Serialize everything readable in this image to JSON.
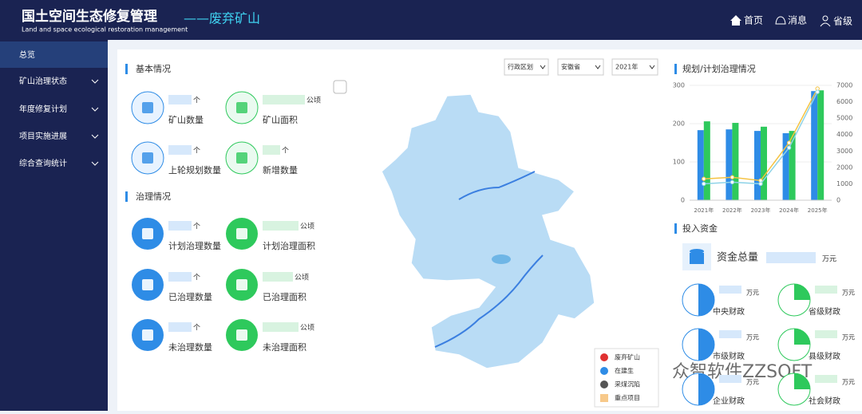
{
  "header": {
    "title": "国土空间生态修复管理",
    "subtitle": "Land and space ecological restoration management",
    "module": "——废弃矿山",
    "nav": [
      "首页",
      "消息",
      "省级"
    ]
  },
  "sidebar": {
    "items": [
      "总览",
      "矿山治理状态",
      "年度修复计划",
      "项目实施进展",
      "综合查询统计"
    ]
  },
  "basic": {
    "title": "基本情况",
    "items": [
      {
        "label": "矿山数量",
        "unit": "个"
      },
      {
        "label": "矿山面积",
        "unit": "公顷"
      },
      {
        "label": "上轮规划数量",
        "unit": "个"
      },
      {
        "label": "新增数量",
        "unit": "个"
      }
    ]
  },
  "governance": {
    "title": "治理情况",
    "items": [
      {
        "label": "计划治理数量",
        "unit": "个"
      },
      {
        "label": "计划治理面积",
        "unit": "公顷"
      },
      {
        "label": "已治理数量",
        "unit": "个"
      },
      {
        "label": "已治理面积",
        "unit": "公顷"
      },
      {
        "label": "未治理数量",
        "unit": "个"
      },
      {
        "label": "未治理面积",
        "unit": "公顷"
      }
    ]
  },
  "map": {
    "filters": [
      "行政区划",
      "安徽省",
      "2021年"
    ],
    "legend": [
      "废弃矿山",
      "在建生",
      "采煤沉陷",
      "重点项目"
    ]
  },
  "chart_data": {
    "type": "bar-line",
    "title": "规划/计划治理情况",
    "categories": [
      "2021年",
      "2022年",
      "2023年",
      "2024年",
      "2025年"
    ],
    "series": [
      {
        "type": "bar",
        "color": "#2e8ce6",
        "values": [
          183,
          185,
          181,
          175,
          285
        ]
      },
      {
        "type": "bar",
        "color": "#2ec95c",
        "values": [
          206,
          202,
          192,
          181,
          287
        ]
      },
      {
        "type": "line",
        "axis": "y2",
        "color": "#f5c342",
        "values": [
          1300,
          1400,
          1200,
          3500,
          6800
        ]
      },
      {
        "type": "line",
        "axis": "y2",
        "color": "#8fd3e8",
        "values": [
          1000,
          1100,
          1000,
          3200,
          6600
        ]
      }
    ],
    "ylim": [
      0,
      300
    ],
    "yticks": [
      0,
      100,
      200,
      300
    ],
    "y2lim": [
      0,
      7000
    ],
    "y2ticks": [
      0,
      1000,
      2000,
      3000,
      4000,
      5000,
      6000,
      7000
    ]
  },
  "funding": {
    "title": "投入资金",
    "total_label": "资金总量",
    "total_unit": "万元",
    "items": [
      {
        "label": "中央财政",
        "unit": "万元",
        "share": 50,
        "color": "#2e8ce6"
      },
      {
        "label": "省级财政",
        "unit": "万元",
        "share": 25,
        "color": "#2ec95c"
      },
      {
        "label": "市级财政",
        "unit": "万元",
        "share": 50,
        "color": "#2e8ce6"
      },
      {
        "label": "县级财政",
        "unit": "万元",
        "share": 25,
        "color": "#2ec95c"
      },
      {
        "label": "企业财政",
        "unit": "万元",
        "share": 50,
        "color": "#2e8ce6"
      },
      {
        "label": "社会财政",
        "unit": "万元",
        "share": 25,
        "color": "#2ec95c"
      }
    ]
  },
  "watermark": "众智软件ZZSOFT"
}
